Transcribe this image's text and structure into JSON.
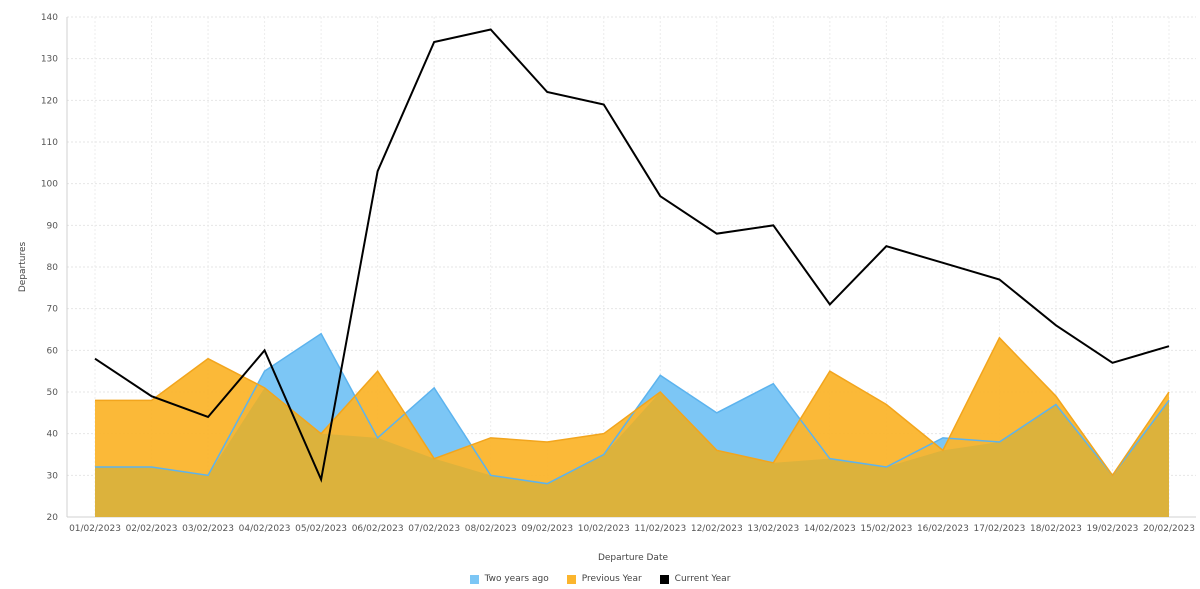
{
  "chart_data": {
    "type": "area",
    "xlabel": "Departure Date",
    "ylabel": "Departures",
    "ylim": [
      20,
      140
    ],
    "yticks": [
      20,
      30,
      40,
      50,
      60,
      70,
      80,
      90,
      100,
      110,
      120,
      130,
      140
    ],
    "grid": true,
    "legend_position": "bottom-center",
    "categories": [
      "01/02/2023",
      "02/02/2023",
      "03/02/2023",
      "04/02/2023",
      "05/02/2023",
      "06/02/2023",
      "07/02/2023",
      "08/02/2023",
      "09/02/2023",
      "10/02/2023",
      "11/02/2023",
      "12/02/2023",
      "13/02/2023",
      "14/02/2023",
      "15/02/2023",
      "16/02/2023",
      "17/02/2023",
      "18/02/2023",
      "19/02/2023",
      "20/02/2023"
    ],
    "series": [
      {
        "name": "Two years ago",
        "style": "area",
        "color": "#7cc6f5",
        "values": [
          32,
          32,
          30,
          55,
          64,
          39,
          51,
          30,
          28,
          35,
          54,
          45,
          52,
          34,
          32,
          39,
          38,
          47,
          30,
          48
        ]
      },
      {
        "name": "Previous Year",
        "style": "area",
        "color": "#fbb52d",
        "values": [
          48,
          48,
          58,
          51,
          40,
          55,
          34,
          39,
          38,
          40,
          50,
          36,
          33,
          55,
          47,
          36,
          63,
          49,
          30,
          50
        ]
      },
      {
        "name": "Current Year",
        "style": "line",
        "color": "#000000",
        "values": [
          58,
          49,
          44,
          60,
          29,
          103,
          134,
          137,
          122,
          119,
          97,
          88,
          90,
          71,
          85,
          81,
          77,
          66,
          57,
          61
        ]
      }
    ],
    "overlap_color": "#dcb23c",
    "line_color_blue": "#5cb3ee",
    "line_color_orange": "#f2a51d"
  }
}
